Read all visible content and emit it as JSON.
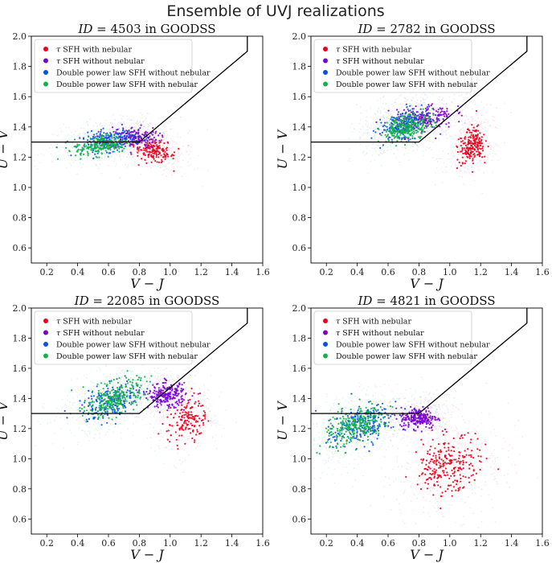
{
  "figure": {
    "title": "Ensemble of UVJ realizations"
  },
  "colors": {
    "tau_nebular": "#e8001c",
    "tau_no_nebular": "#7b00d0",
    "dpl_no_nebular": "#0a4fe8",
    "dpl_nebular": "#13b24a",
    "boundary": "#000000"
  },
  "legend": [
    {
      "label_prefix": "τ",
      "label": " SFH with nebular",
      "color_key": "tau_nebular"
    },
    {
      "label_prefix": "τ",
      "label": " SFH without nebular",
      "color_key": "tau_no_nebular"
    },
    {
      "label_prefix": "",
      "label": "Double power law SFH without nebular",
      "color_key": "dpl_no_nebular"
    },
    {
      "label_prefix": "",
      "label": "Double power law SFH with nebular",
      "color_key": "dpl_nebular"
    }
  ],
  "chart_data": [
    {
      "type": "scatter",
      "title_prefix": "ID",
      "title_eq": " = 4503 in GOODSS",
      "xlabel": "V − J",
      "ylabel": "U − V",
      "xlim": [
        0.1,
        1.6
      ],
      "ylim": [
        0.5,
        2.0
      ],
      "xticks": [
        0.2,
        0.4,
        0.6,
        0.8,
        1.0,
        1.2,
        1.4,
        1.6
      ],
      "yticks": [
        0.6,
        0.8,
        1.0,
        1.2,
        1.4,
        1.6,
        1.8,
        2.0
      ],
      "grid": false,
      "legend_position": "upper-left",
      "boundary": {
        "x": [
          0.1,
          0.8,
          1.5,
          1.5
        ],
        "y": [
          1.3,
          1.3,
          1.9,
          2.0
        ]
      },
      "series": [
        {
          "color_key": "tau_nebular",
          "cx": 0.9,
          "cy": 1.24,
          "sx": 0.07,
          "sy": 0.035,
          "n": 160,
          "rot": -0.3
        },
        {
          "color_key": "tau_no_nebular",
          "cx": 0.76,
          "cy": 1.33,
          "sx": 0.08,
          "sy": 0.035,
          "n": 170,
          "rot": 0.0
        },
        {
          "color_key": "dpl_no_nebular",
          "cx": 0.6,
          "cy": 1.31,
          "sx": 0.09,
          "sy": 0.035,
          "n": 190,
          "rot": 0.15
        },
        {
          "color_key": "dpl_nebular",
          "cx": 0.56,
          "cy": 1.28,
          "sx": 0.09,
          "sy": 0.032,
          "n": 220,
          "rot": 0.15
        }
      ]
    },
    {
      "type": "scatter",
      "title_prefix": "ID",
      "title_eq": " = 2782 in GOODSS",
      "xlabel": "V − J",
      "ylabel": "U − V",
      "xlim": [
        0.1,
        1.6
      ],
      "ylim": [
        0.5,
        2.0
      ],
      "xticks": [
        0.2,
        0.4,
        0.6,
        0.8,
        1.0,
        1.2,
        1.4,
        1.6
      ],
      "yticks": [
        0.6,
        0.8,
        1.0,
        1.2,
        1.4,
        1.6,
        1.8,
        2.0
      ],
      "grid": false,
      "legend_position": "upper-left",
      "boundary": {
        "x": [
          0.1,
          0.8,
          1.5,
          1.5
        ],
        "y": [
          1.3,
          1.3,
          1.9,
          2.0
        ]
      },
      "series": [
        {
          "color_key": "tau_nebular",
          "cx": 1.14,
          "cy": 1.28,
          "sx": 0.04,
          "sy": 0.06,
          "n": 200,
          "rot": -0.5
        },
        {
          "color_key": "tau_no_nebular",
          "cx": 0.82,
          "cy": 1.45,
          "sx": 0.1,
          "sy": 0.045,
          "n": 220,
          "rot": 0.2
        },
        {
          "color_key": "dpl_no_nebular",
          "cx": 0.7,
          "cy": 1.41,
          "sx": 0.08,
          "sy": 0.045,
          "n": 200,
          "rot": 0.35
        },
        {
          "color_key": "dpl_nebular",
          "cx": 0.72,
          "cy": 1.4,
          "sx": 0.08,
          "sy": 0.04,
          "n": 260,
          "rot": 0.35
        }
      ]
    },
    {
      "type": "scatter",
      "title_prefix": "ID",
      "title_eq": " = 22085 in GOODSS",
      "xlabel": "V − J",
      "ylabel": "U − V",
      "xlim": [
        0.1,
        1.6
      ],
      "ylim": [
        0.5,
        2.0
      ],
      "xticks": [
        0.2,
        0.4,
        0.6,
        0.8,
        1.0,
        1.2,
        1.4,
        1.6
      ],
      "yticks": [
        0.6,
        0.8,
        1.0,
        1.2,
        1.4,
        1.6,
        1.8,
        2.0
      ],
      "grid": false,
      "legend_position": "upper-left",
      "boundary": {
        "x": [
          0.1,
          0.8,
          1.5,
          1.5
        ],
        "y": [
          1.3,
          1.3,
          1.9,
          2.0
        ]
      },
      "series": [
        {
          "color_key": "tau_nebular",
          "cx": 1.1,
          "cy": 1.25,
          "sx": 0.06,
          "sy": 0.07,
          "n": 150,
          "rot": -0.6
        },
        {
          "color_key": "tau_no_nebular",
          "cx": 0.98,
          "cy": 1.42,
          "sx": 0.06,
          "sy": 0.04,
          "n": 220,
          "rot": 0.0
        },
        {
          "color_key": "dpl_no_nebular",
          "cx": 0.62,
          "cy": 1.38,
          "sx": 0.1,
          "sy": 0.05,
          "n": 200,
          "rot": 0.4
        },
        {
          "color_key": "dpl_nebular",
          "cx": 0.64,
          "cy": 1.4,
          "sx": 0.1,
          "sy": 0.05,
          "n": 260,
          "rot": 0.4
        }
      ]
    },
    {
      "type": "scatter",
      "title_prefix": "ID",
      "title_eq": " = 4821 in GOODSS",
      "xlabel": "V − J",
      "ylabel": "U − V",
      "xlim": [
        0.1,
        1.6
      ],
      "ylim": [
        0.5,
        2.0
      ],
      "xticks": [
        0.2,
        0.4,
        0.6,
        0.8,
        1.0,
        1.2,
        1.4,
        1.6
      ],
      "yticks": [
        0.6,
        0.8,
        1.0,
        1.2,
        1.4,
        1.6,
        1.8,
        2.0
      ],
      "grid": false,
      "legend_position": "upper-left",
      "boundary": {
        "x": [
          0.1,
          0.8,
          1.5,
          1.5
        ],
        "y": [
          1.3,
          1.3,
          1.9,
          2.0
        ]
      },
      "series": [
        {
          "color_key": "tau_nebular",
          "cx": 1.0,
          "cy": 0.95,
          "sx": 0.09,
          "sy": 0.11,
          "n": 260,
          "rot": -1.05
        },
        {
          "color_key": "tau_no_nebular",
          "cx": 0.8,
          "cy": 1.27,
          "sx": 0.06,
          "sy": 0.035,
          "n": 220,
          "rot": 0.0
        },
        {
          "color_key": "dpl_no_nebular",
          "cx": 0.42,
          "cy": 1.22,
          "sx": 0.11,
          "sy": 0.06,
          "n": 220,
          "rot": 0.45
        },
        {
          "color_key": "dpl_nebular",
          "cx": 0.4,
          "cy": 1.22,
          "sx": 0.11,
          "sy": 0.055,
          "n": 280,
          "rot": 0.45
        }
      ]
    }
  ]
}
